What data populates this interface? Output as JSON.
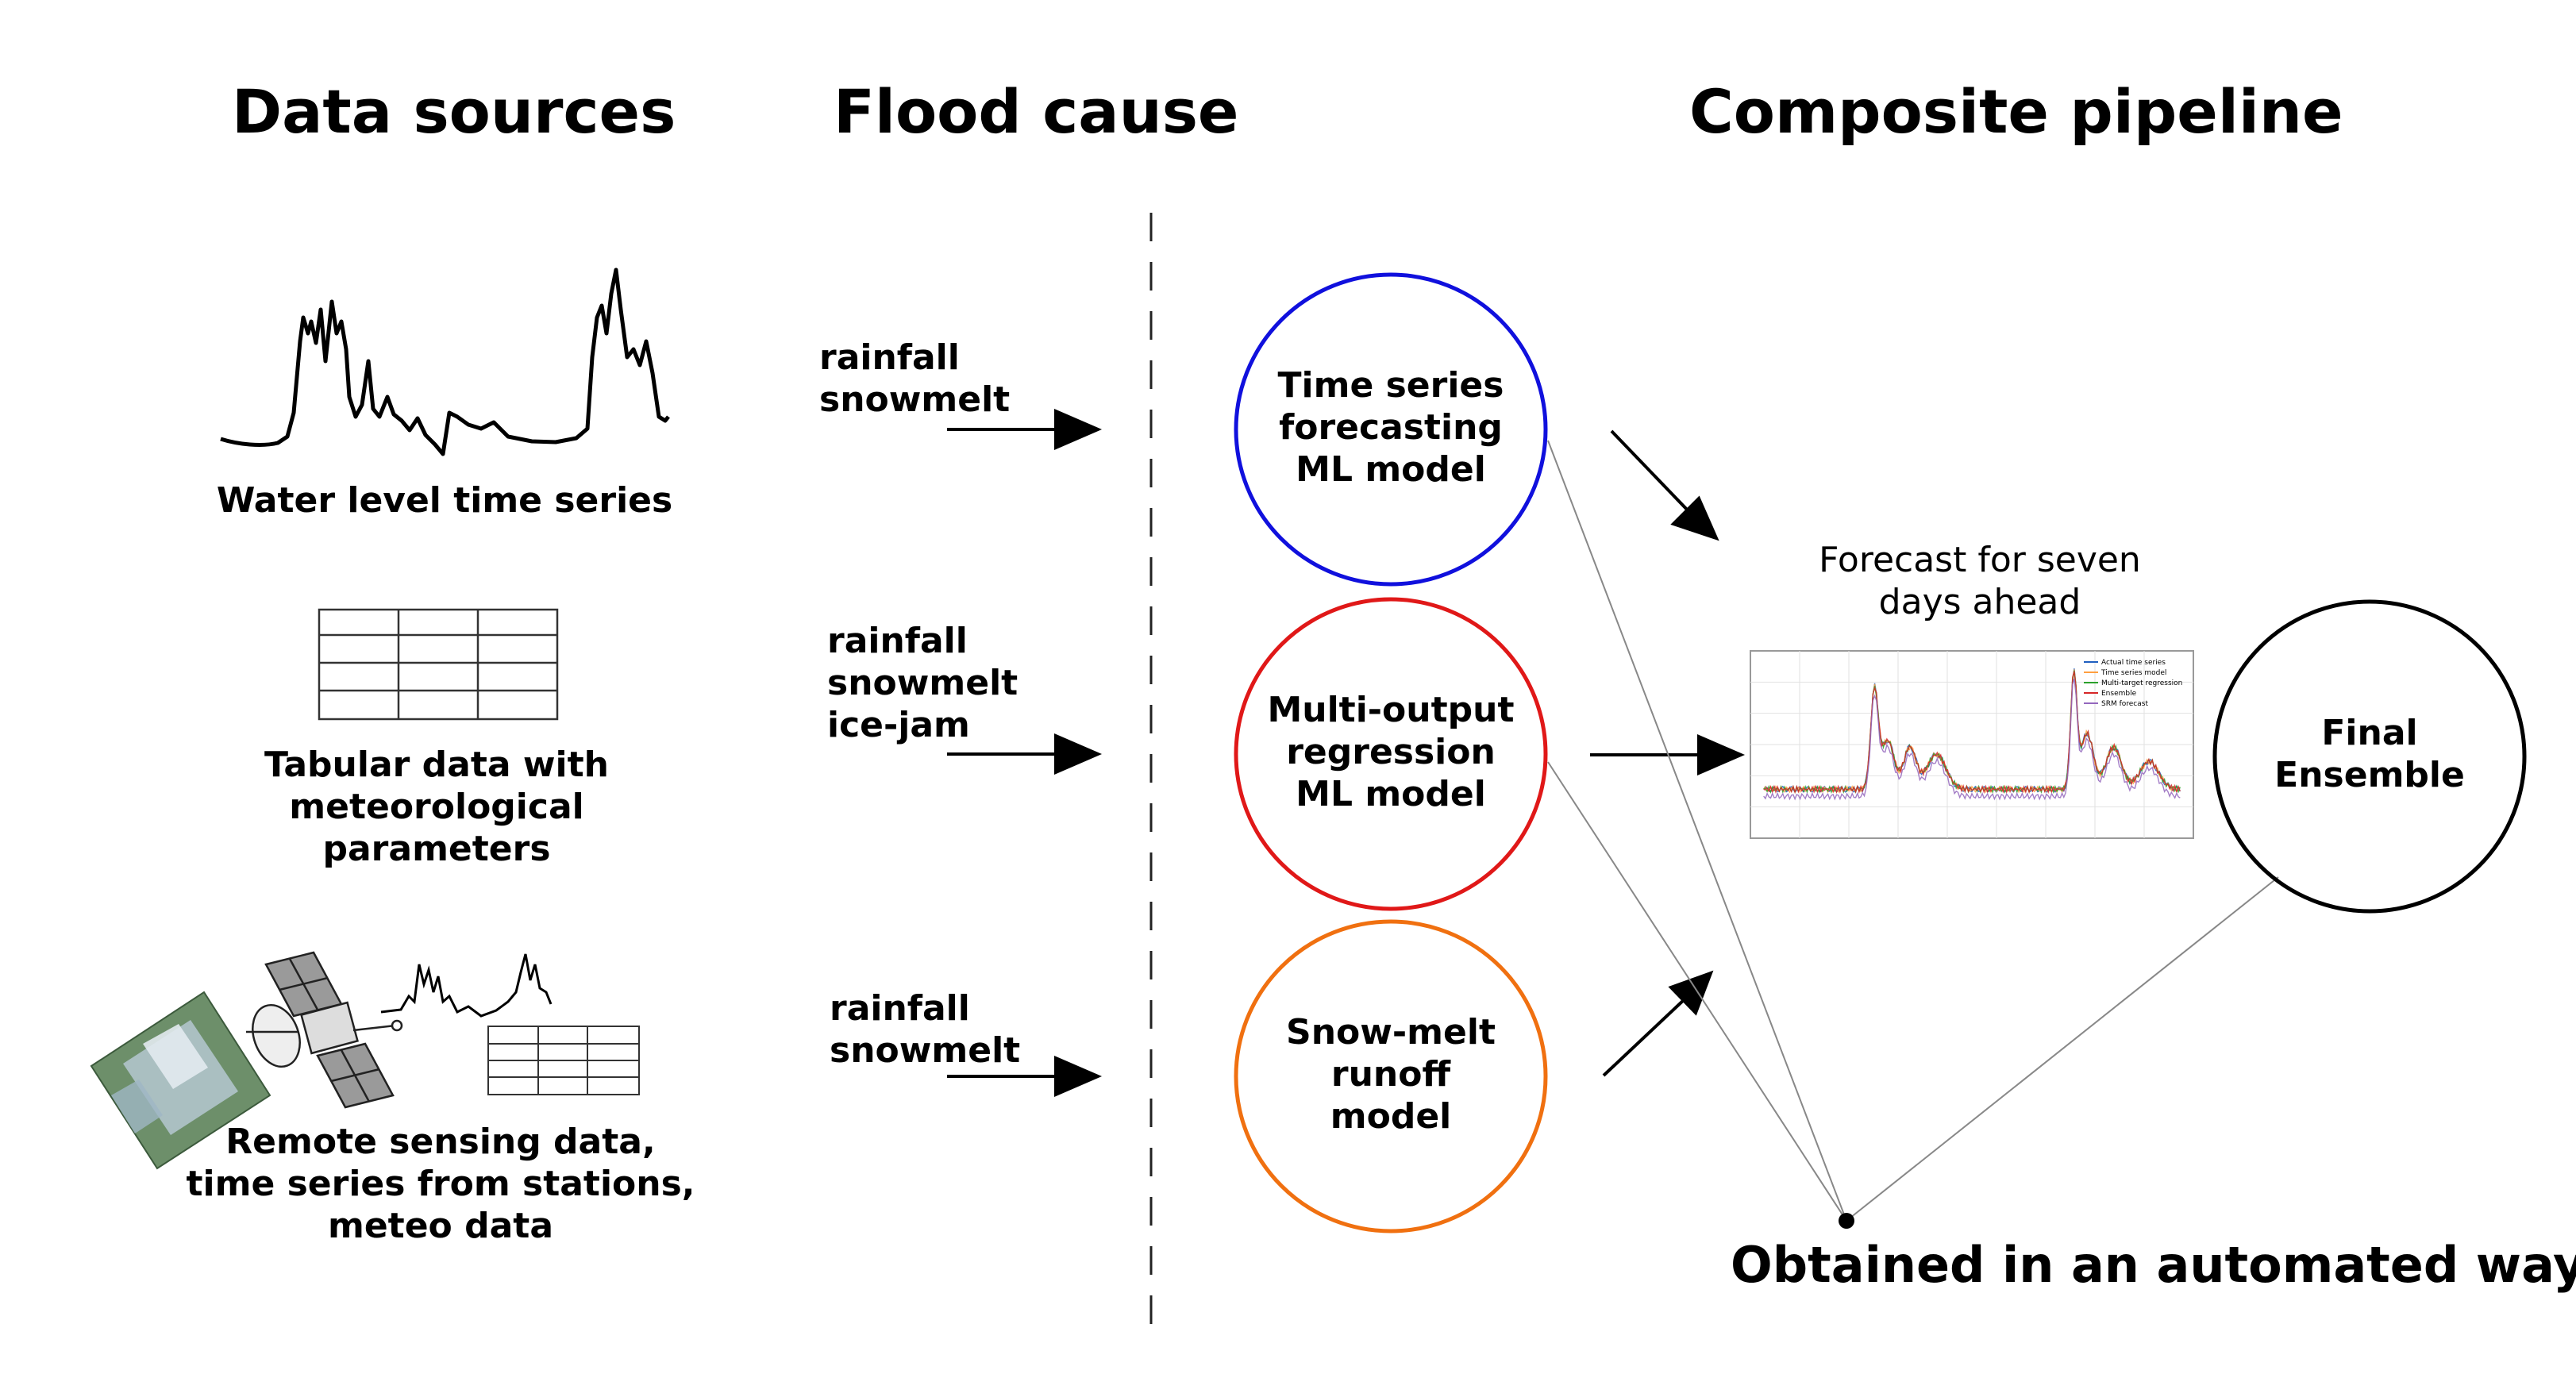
{
  "headings": {
    "data_sources": "Data sources",
    "flood_cause": "Flood cause",
    "composite_pipeline": "Composite pipeline"
  },
  "data_sources": [
    {
      "icon": "line-chart-icon",
      "label": "Water level time series"
    },
    {
      "icon": "table-icon",
      "label": "Tabular data with\nmeteorological\nparameters"
    },
    {
      "icon": "satellite-icon",
      "label": "Remote sensing data,\ntime series from stations,\nmeteo data"
    }
  ],
  "flood_causes": [
    {
      "text": "rainfall\nsnowmelt"
    },
    {
      "text": "rainfall\nsnowmelt\nice-jam"
    },
    {
      "text": "rainfall\nsnowmelt"
    }
  ],
  "models": [
    {
      "label": "Time series\nforecasting\nML model",
      "color": "#1010dd"
    },
    {
      "label": "Multi-output\nregression\nML model",
      "color": "#e01818"
    },
    {
      "label": "Snow-melt\nrunoff\nmodel",
      "color": "#f07010"
    }
  ],
  "forecast": {
    "title": "Forecast for seven\ndays ahead",
    "legend": [
      {
        "name": "Actual time series",
        "color": "#1f5fbf"
      },
      {
        "name": "Time series model",
        "color": "#ff9f40"
      },
      {
        "name": "Multi-target regression",
        "color": "#2ca02c"
      },
      {
        "name": "Ensemble",
        "color": "#d62728"
      },
      {
        "name": "SRM forecast",
        "color": "#9467bd"
      }
    ]
  },
  "final": {
    "label": "Final\nEnsemble"
  },
  "automated": {
    "label": "Obtained in an automated way"
  }
}
